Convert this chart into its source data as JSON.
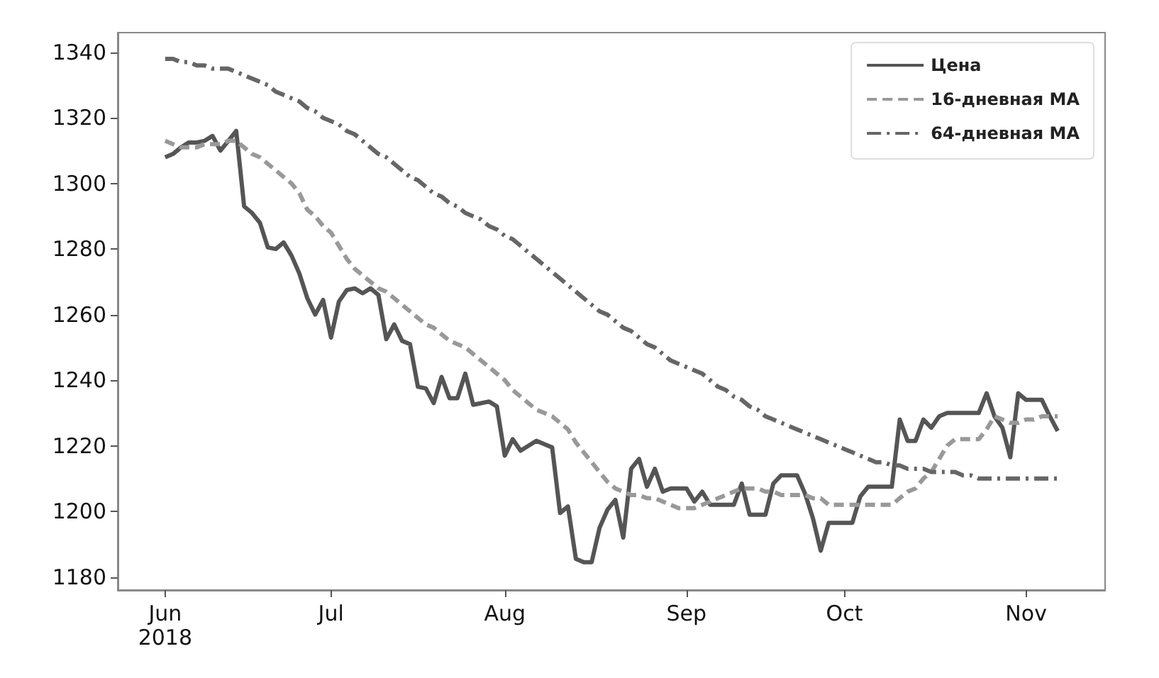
{
  "chart_data": {
    "type": "line",
    "categories": [
      null,
      null,
      null,
      null,
      null,
      null,
      "Jun\n2018",
      null,
      null,
      null,
      null,
      null,
      null,
      null,
      null,
      null,
      null,
      null,
      null,
      null,
      null,
      null,
      null,
      null,
      null,
      null,
      null,
      "Jul",
      null,
      null,
      null,
      null,
      null,
      null,
      null,
      null,
      null,
      null,
      null,
      null,
      null,
      null,
      null,
      null,
      null,
      null,
      null,
      null,
      null,
      "Aug",
      null,
      null,
      null,
      null,
      null,
      null,
      null,
      null,
      null,
      null,
      null,
      null,
      null,
      null,
      null,
      null,
      null,
      null,
      null,
      null,
      null,
      null,
      "Sep",
      null,
      null,
      null,
      null,
      null,
      null,
      null,
      null,
      null,
      null,
      null,
      null,
      null,
      null,
      null,
      null,
      null,
      null,
      null,
      "Oct",
      null,
      null,
      null,
      null,
      null,
      null,
      null,
      null,
      null,
      null,
      null,
      null,
      null,
      null,
      null,
      null,
      null,
      null,
      null,
      null,
      null,
      null,
      "Nov",
      null,
      null,
      null,
      null,
      null,
      null,
      null,
      null,
      null,
      null
    ],
    "series": [
      {
        "name": "Цена",
        "color": "#555555",
        "line_style": "solid",
        "values": [
          null,
          null,
          null,
          null,
          null,
          null,
          1308,
          1309,
          1311,
          1312.5,
          1312.5,
          1313,
          1314.5,
          1310,
          1313,
          1316,
          1293,
          1291,
          1288,
          1280.5,
          1280,
          1282,
          1278,
          1272.5,
          1265,
          1260,
          1264.5,
          1253,
          1264,
          1267.5,
          1268,
          1266.5,
          1268,
          1266,
          1252.5,
          1257,
          1252,
          1251,
          1238,
          1237.5,
          1233,
          1241,
          1234.5,
          1234.5,
          1242,
          1232.5,
          1233,
          1233.5,
          1232,
          1217,
          1222,
          1218.5,
          1220,
          1221.5,
          1220.5,
          1219.5,
          1199.5,
          1201.5,
          1185.5,
          1184.5,
          1184.5,
          1195,
          1200.5,
          1203.5,
          1192,
          1213,
          1216,
          1207.5,
          1213,
          1206,
          1207,
          1207,
          1207,
          1203,
          1206,
          1202,
          1202,
          1202,
          1202,
          1208.5,
          1199,
          1199,
          1199,
          1208.5,
          1211,
          1211,
          1211,
          1205.5,
          1198,
          1188,
          1196.5,
          1196.5,
          1196.5,
          1196.5,
          1204.5,
          1207.5,
          1207.5,
          1207.5,
          1207.5,
          1228,
          1221.5,
          1221.5,
          1228,
          1225.5,
          1229,
          1230,
          1230,
          1230,
          1230,
          1230,
          1236,
          1229,
          1225.5,
          1216.5,
          1236,
          1234,
          1234,
          1234,
          1229,
          1224.5,
          null,
          null,
          null,
          null,
          null,
          null
        ]
      },
      {
        "name": "16-дневная MA",
        "color": "#999999",
        "line_style": "dashed",
        "values": [
          null,
          null,
          null,
          null,
          null,
          null,
          1313,
          1312,
          1311,
          1311,
          1311,
          1312,
          1312,
          1312,
          1313,
          1313,
          1311,
          1309,
          1308,
          1306,
          1304,
          1302,
          1300,
          1297,
          1292,
          1290,
          1287,
          1285,
          1281,
          1277,
          1274,
          1272,
          1270,
          1268,
          1267,
          1265,
          1263,
          1261,
          1259,
          1257,
          1256,
          1254,
          1252,
          1251,
          1250,
          1248,
          1246,
          1244,
          1242,
          1240,
          1237,
          1235,
          1233,
          1231,
          1230,
          1229,
          1227,
          1225,
          1221,
          1218,
          1215,
          1212,
          1209,
          1207,
          1206,
          1205,
          1205,
          1204,
          1204,
          1203,
          1202,
          1201,
          1201,
          1201,
          1202,
          1203,
          1204,
          1205,
          1206,
          1207,
          1207,
          1207,
          1206,
          1206,
          1205,
          1205,
          1205,
          1205,
          1204,
          1204,
          1202,
          1202,
          1202,
          1202,
          1202,
          1202,
          1202,
          1202,
          1202,
          1204,
          1206,
          1207,
          1210,
          1212,
          1216,
          1220,
          1222,
          1222,
          1222,
          1222,
          1225,
          1229,
          1228,
          1227,
          1227,
          1228,
          1228,
          1229,
          1229,
          1229,
          null,
          null,
          null,
          null,
          null,
          null
        ]
      },
      {
        "name": "64-дневная MA",
        "color": "#666666",
        "line_style": "dashdot",
        "values": [
          null,
          null,
          null,
          null,
          null,
          null,
          1338,
          1338,
          1337,
          1337,
          1336,
          1336,
          1335,
          1335,
          1335,
          1334,
          1333,
          1332,
          1331,
          1330,
          1328,
          1327,
          1326,
          1325,
          1323,
          1322,
          1320,
          1319,
          1318,
          1316,
          1315,
          1313,
          1311,
          1309,
          1308,
          1306,
          1304,
          1302,
          1301,
          1299,
          1297,
          1296,
          1294,
          1293,
          1291,
          1290,
          1289,
          1287,
          1286,
          1284,
          1283,
          1281,
          1279,
          1277,
          1275,
          1273,
          1271,
          1269,
          1267,
          1265,
          1263,
          1261,
          1260,
          1258,
          1256,
          1255,
          1253,
          1251,
          1250,
          1248,
          1246,
          1245,
          1244,
          1243,
          1242,
          1240,
          1238,
          1237,
          1235,
          1234,
          1232,
          1231,
          1229,
          1228,
          1227,
          1226,
          1225,
          1224,
          1223,
          1222,
          1221,
          1220,
          1219,
          1218,
          1217,
          1216,
          1215,
          1215,
          1214,
          1214,
          1213,
          1213,
          1213,
          1212,
          1212,
          1212,
          1212,
          1211,
          1211,
          1210,
          1210,
          1210,
          1210,
          1210,
          1210,
          1210,
          1210,
          1210,
          1210,
          1210,
          null,
          null,
          null,
          null,
          null,
          null
        ]
      }
    ],
    "ylim": [
      1176,
      1346
    ],
    "yticks": [
      1180,
      1200,
      1220,
      1240,
      1260,
      1280,
      1300,
      1320,
      1340
    ],
    "grid": false,
    "legend": "top right",
    "marker": "none"
  }
}
